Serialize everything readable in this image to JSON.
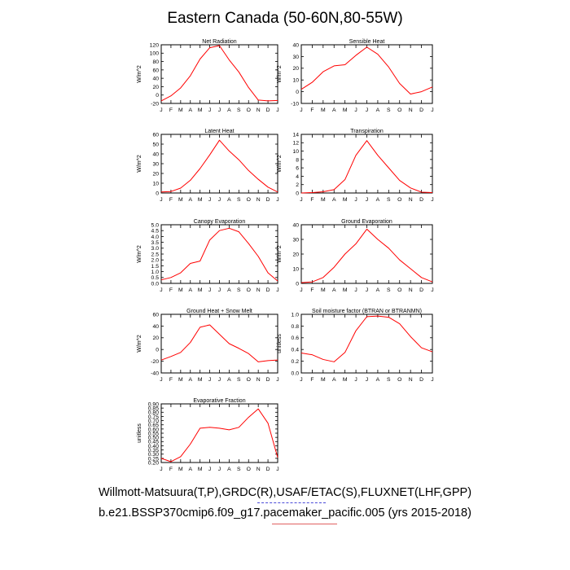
{
  "title": "Eastern Canada (50-60N,80-55W)",
  "footer": {
    "line1": "Willmott-Matsuura(T,P),GRDC(R),USAF/ETAC(S),FLUXNET(LHF,GPP)",
    "line2": "b.e21.BSSP370cmip6.f09_g17.pacemaker_pacific.005 (yrs 2015-2018)"
  },
  "colors": {
    "series": "#ff0000",
    "axis": "#000000"
  },
  "chart_data": [
    {
      "type": "line",
      "title": "Net Radiation",
      "ylabel": "W/m^2",
      "categories": [
        "J",
        "F",
        "M",
        "A",
        "M",
        "J",
        "J",
        "A",
        "S",
        "O",
        "N",
        "D",
        "J"
      ],
      "yticks": [
        -20,
        0,
        20,
        40,
        60,
        80,
        100,
        120
      ],
      "ylim": [
        -20,
        120
      ],
      "tick_decimals": 0,
      "values": [
        -14,
        -2,
        17,
        46,
        86,
        113,
        118,
        84,
        55,
        18,
        -12,
        -14,
        -13
      ]
    },
    {
      "type": "line",
      "title": "Sensible Heat",
      "ylabel": "W/m^2",
      "categories": [
        "J",
        "F",
        "M",
        "A",
        "M",
        "J",
        "J",
        "A",
        "S",
        "O",
        "N",
        "D",
        "J"
      ],
      "yticks": [
        -10,
        0,
        10,
        20,
        30,
        40
      ],
      "ylim": [
        -10,
        40
      ],
      "tick_decimals": 0,
      "values": [
        2,
        8,
        17,
        22,
        23,
        31,
        38,
        32,
        21,
        7,
        -2,
        0,
        4
      ]
    },
    {
      "type": "line",
      "title": "Latent Heat",
      "ylabel": "W/m^2",
      "categories": [
        "J",
        "F",
        "M",
        "A",
        "M",
        "J",
        "J",
        "A",
        "S",
        "O",
        "N",
        "D",
        "J"
      ],
      "yticks": [
        0,
        10,
        20,
        30,
        40,
        50,
        60
      ],
      "ylim": [
        0,
        60
      ],
      "tick_decimals": 0,
      "values": [
        1,
        1.5,
        5,
        13,
        25,
        39,
        54,
        43,
        34,
        23,
        14,
        6,
        1
      ]
    },
    {
      "type": "line",
      "title": "Transpiration",
      "ylabel": "W/m^2",
      "categories": [
        "J",
        "F",
        "M",
        "A",
        "M",
        "J",
        "J",
        "A",
        "S",
        "O",
        "N",
        "D",
        "J"
      ],
      "yticks": [
        0,
        2,
        4,
        6,
        8,
        10,
        12,
        14
      ],
      "ylim": [
        0,
        14
      ],
      "tick_decimals": 0,
      "values": [
        0,
        0.1,
        0.3,
        0.8,
        3.2,
        9,
        12.5,
        9,
        6,
        3,
        1.2,
        0.2,
        0.1
      ]
    },
    {
      "type": "line",
      "title": "Canopy Evaporation",
      "ylabel": "W/m^2",
      "categories": [
        "J",
        "F",
        "M",
        "A",
        "M",
        "J",
        "J",
        "A",
        "S",
        "O",
        "N",
        "D",
        "J"
      ],
      "yticks": [
        0,
        0.5,
        1,
        1.5,
        2,
        2.5,
        3,
        3.5,
        4,
        4.5,
        5
      ],
      "ylim": [
        0,
        5
      ],
      "tick_decimals": 1,
      "values": [
        0.3,
        0.5,
        0.9,
        1.7,
        1.9,
        3.7,
        4.5,
        4.7,
        4.4,
        3.4,
        2.3,
        0.9,
        0.2
      ]
    },
    {
      "type": "line",
      "title": "Ground Evaporation",
      "ylabel": "W/m^2",
      "categories": [
        "J",
        "F",
        "M",
        "A",
        "M",
        "J",
        "J",
        "A",
        "S",
        "O",
        "N",
        "D",
        "J"
      ],
      "yticks": [
        0,
        10,
        20,
        30,
        40
      ],
      "ylim": [
        0,
        40
      ],
      "tick_decimals": 0,
      "values": [
        0.5,
        1,
        4,
        11,
        20,
        27,
        37,
        30,
        24,
        16,
        10,
        4,
        1
      ]
    },
    {
      "type": "line",
      "title": "Ground Heat + Snow Melt",
      "ylabel": "W/m^2",
      "categories": [
        "J",
        "F",
        "M",
        "A",
        "M",
        "J",
        "J",
        "A",
        "S",
        "O",
        "N",
        "D",
        "J"
      ],
      "yticks": [
        -40,
        -20,
        0,
        20,
        40,
        60
      ],
      "ylim": [
        -40,
        60
      ],
      "tick_decimals": 0,
      "values": [
        -18,
        -12,
        -5,
        12,
        38,
        42,
        26,
        10,
        2,
        -7,
        -21,
        -19,
        -18
      ]
    },
    {
      "type": "line",
      "title": "Soil moisture factor (BTRAN or BTRANMN)",
      "ylabel": "unitless",
      "categories": [
        "J",
        "F",
        "M",
        "A",
        "M",
        "J",
        "J",
        "A",
        "S",
        "O",
        "N",
        "D",
        "J"
      ],
      "yticks": [
        0,
        0.2,
        0.4,
        0.6,
        0.8,
        1
      ],
      "ylim": [
        0,
        1
      ],
      "tick_decimals": 1,
      "values": [
        0.34,
        0.31,
        0.23,
        0.19,
        0.35,
        0.72,
        0.96,
        0.97,
        0.95,
        0.84,
        0.62,
        0.43,
        0.36
      ]
    },
    {
      "type": "line",
      "title": "Evaporative Fraction",
      "ylabel": "unitless",
      "categories": [
        "J",
        "F",
        "M",
        "A",
        "M",
        "J",
        "J",
        "A",
        "S",
        "O",
        "N",
        "D",
        "J"
      ],
      "yticks": [
        0.2,
        0.25,
        0.3,
        0.35,
        0.4,
        0.45,
        0.5,
        0.55,
        0.6,
        0.65,
        0.7,
        0.75,
        0.8,
        0.85,
        0.9
      ],
      "ylim": [
        0.2,
        0.9
      ],
      "tick_decimals": 2,
      "values": [
        0.25,
        0.21,
        0.27,
        0.42,
        0.61,
        0.62,
        0.61,
        0.59,
        0.62,
        0.74,
        0.84,
        0.67,
        0.26
      ]
    }
  ]
}
